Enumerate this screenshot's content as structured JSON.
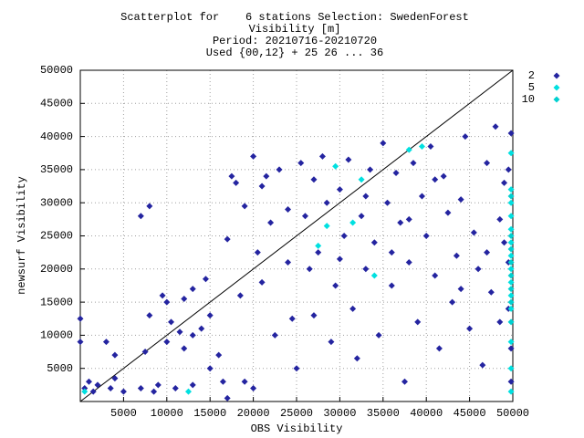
{
  "chart_data": {
    "type": "scatter",
    "title": [
      "Scatterplot for    6 stations Selection: SwedenForest",
      "Visibility [m]",
      "Period: 20210716-20210720",
      "Used {00,12} + 25 26 ... 36"
    ],
    "x_label": "OBS Visibility",
    "y_label": "newsurf Visibility",
    "xlim": [
      0,
      50000
    ],
    "ylim": [
      0,
      50000
    ],
    "xticks": [
      5000,
      10000,
      15000,
      20000,
      25000,
      30000,
      35000,
      40000,
      45000,
      50000
    ],
    "yticks": [
      5000,
      10000,
      15000,
      20000,
      25000,
      30000,
      35000,
      40000,
      45000,
      50000
    ],
    "grid": true,
    "legend": "right",
    "series": [
      {
        "name": "2",
        "color": "#2424a0",
        "x": [
          0,
          0,
          500,
          1000,
          1500,
          2000,
          3000,
          3500,
          4000,
          4000,
          5000,
          7000,
          7000,
          7500,
          8000,
          8000,
          8500,
          9000,
          9500,
          10000,
          10000,
          10500,
          11000,
          11500,
          12000,
          12000,
          13000,
          13000,
          14000,
          14500,
          15000,
          16000,
          16500,
          17000,
          17000,
          17500,
          18000,
          18500,
          19000,
          19000,
          20000,
          20000,
          20500,
          21000,
          21500,
          22000,
          22500,
          23000,
          24000,
          24500,
          25000,
          25500,
          26000,
          26500,
          27000,
          27500,
          28000,
          28500,
          29000,
          29500,
          30000,
          30500,
          31000,
          31500,
          32000,
          32500,
          33000,
          33500,
          34000,
          34500,
          35000,
          35500,
          36000,
          36500,
          37000,
          37500,
          38000,
          38500,
          39000,
          39500,
          40000,
          40500,
          41000,
          41500,
          42000,
          42500,
          43000,
          43500,
          44000,
          44500,
          45000,
          45500,
          46000,
          46500,
          47000,
          47500,
          48000,
          48500,
          49000,
          49500,
          49500,
          49800,
          49800,
          49800,
          49500,
          49000,
          48500,
          47000,
          44000,
          41000,
          38000,
          36000,
          33000,
          30000,
          27000,
          24000,
          21000,
          15000,
          13000
        ],
        "values": [
          12500,
          9000,
          2000,
          3000,
          1500,
          2500,
          9000,
          2000,
          3500,
          7000,
          1500,
          2000,
          28000,
          7500,
          29500,
          13000,
          1500,
          2500,
          16000,
          15000,
          9000,
          12000,
          2000,
          10500,
          8000,
          15500,
          2500,
          17000,
          11000,
          18500,
          5000,
          7000,
          3000,
          500,
          24500,
          34000,
          33000,
          16000,
          29500,
          3000,
          37000,
          2000,
          22500,
          32500,
          34000,
          27000,
          10000,
          35000,
          21000,
          12500,
          5000,
          36000,
          28000,
          20000,
          13000,
          22500,
          37000,
          30000,
          9000,
          17500,
          32000,
          25000,
          36500,
          14000,
          6500,
          28000,
          20000,
          35000,
          24000,
          10000,
          39000,
          30000,
          17500,
          34500,
          27000,
          3000,
          21000,
          36000,
          12000,
          31000,
          25000,
          38500,
          19000,
          8000,
          34000,
          28500,
          15000,
          22000,
          30500,
          40000,
          11000,
          25500,
          20000,
          5500,
          36000,
          16500,
          41500,
          27500,
          33000,
          21000,
          14000,
          40500,
          8000,
          3000,
          35000,
          24000,
          12000,
          22500,
          17000,
          33500,
          27500,
          22500,
          31000,
          21500,
          33500,
          29000,
          18000,
          13000,
          10000
        ]
      },
      {
        "name": "5",
        "color": "#00e0e0",
        "x": [
          500,
          12500,
          27500,
          28500,
          29500,
          31500,
          32500,
          34000,
          38000,
          39500,
          49800,
          49800,
          49800,
          49800,
          49800,
          49800,
          49800,
          49800,
          49800,
          49800,
          49800,
          49800,
          49800,
          49800
        ],
        "values": [
          1500,
          1500,
          23500,
          26500,
          35500,
          27000,
          33500,
          19000,
          38000,
          38500,
          37500,
          32000,
          30000,
          28000,
          26000,
          24000,
          22000,
          20000,
          18000,
          16000,
          14000,
          9000,
          5000,
          1500
        ]
      },
      {
        "name": "10",
        "color": "#00d0d0",
        "x": [
          49800,
          49800,
          49800,
          49800,
          49800,
          49800,
          49800,
          49800
        ],
        "values": [
          25000,
          23000,
          21000,
          19000,
          17000,
          15000,
          31000,
          12000
        ]
      }
    ]
  }
}
